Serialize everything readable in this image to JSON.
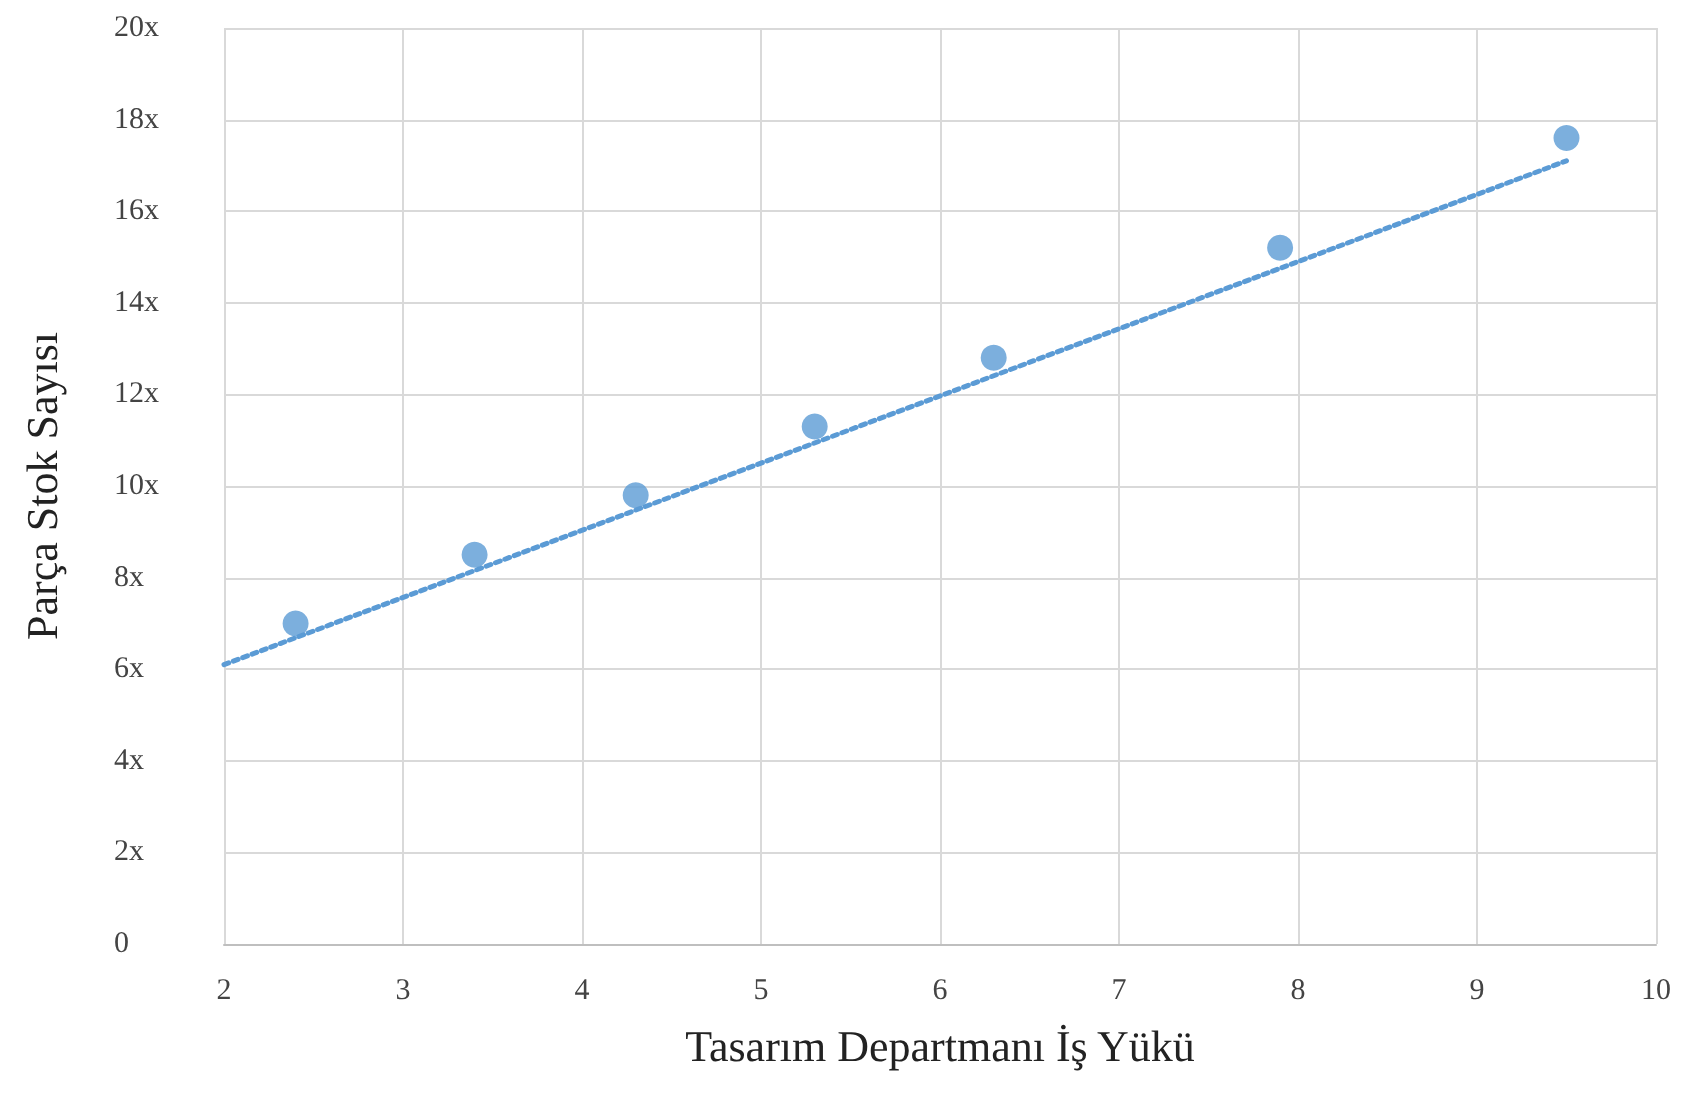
{
  "chart_data": {
    "type": "scatter",
    "xlabel": "Tasarım Departmanı İş Yükü",
    "ylabel": "Parça Stok Sayısı",
    "xlim": [
      2,
      10
    ],
    "xticks": [
      2,
      3,
      4,
      5,
      6,
      7,
      8,
      9,
      10
    ],
    "ylim": [
      0,
      20
    ],
    "yticks": [
      {
        "value": 0,
        "label": "0"
      },
      {
        "value": 2,
        "label": "2x"
      },
      {
        "value": 4,
        "label": "4x"
      },
      {
        "value": 6,
        "label": "6x"
      },
      {
        "value": 8,
        "label": "8x"
      },
      {
        "value": 10,
        "label": "10x"
      },
      {
        "value": 12,
        "label": "12x"
      },
      {
        "value": 14,
        "label": "14x"
      },
      {
        "value": 16,
        "label": "16x"
      },
      {
        "value": 18,
        "label": "18x"
      },
      {
        "value": 20,
        "label": "20x"
      }
    ],
    "grid": true,
    "marker": "circle",
    "series": [
      {
        "color": "#5b9bd5",
        "x": [
          2.4,
          3.4,
          4.3,
          5.3,
          6.3,
          7.9,
          9.5
        ],
        "values": [
          7.0,
          8.5,
          9.8,
          11.3,
          12.8,
          15.2,
          17.6
        ]
      },
      {
        "type": "line",
        "color": "#5b9bd5",
        "x": [
          2,
          9.5
        ],
        "values": [
          6.1,
          17.1
        ],
        "line_style": "dotted",
        "marker": "none"
      }
    ]
  }
}
